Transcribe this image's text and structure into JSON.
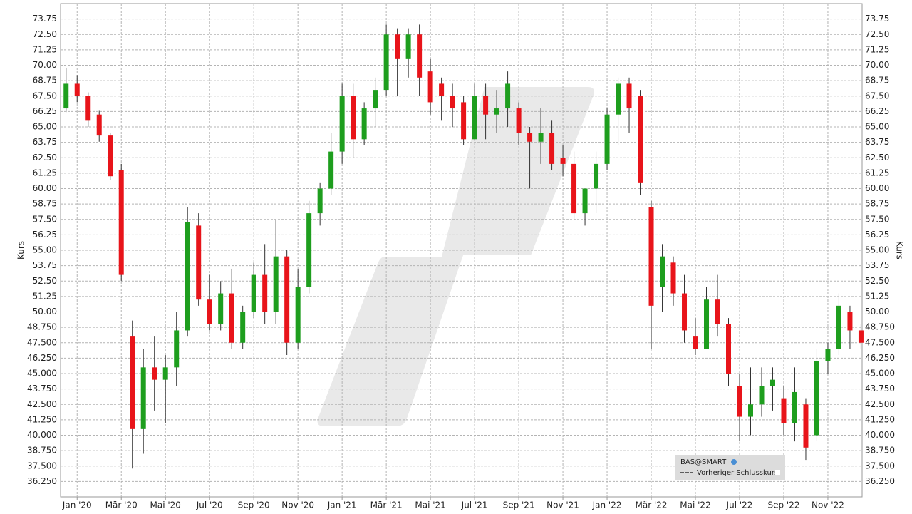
{
  "chart_data": {
    "type": "candlestick",
    "y_label": "Kurs",
    "xlim": [
      -0.75,
      35.55
    ],
    "ylim": [
      35,
      75
    ],
    "grid": true,
    "up_color": "#1e9e1e",
    "down_color": "#e8141a",
    "legend": {
      "title": "BAS@SMART",
      "items": [
        "Vorheriger Schlusskurs"
      ],
      "position": "lower-right"
    },
    "xticks": [
      {
        "value": 0,
        "label": "Jan '20"
      },
      {
        "value": 2,
        "label": "Mär '20"
      },
      {
        "value": 4,
        "label": "Mai '20"
      },
      {
        "value": 6,
        "label": "Jul '20"
      },
      {
        "value": 8,
        "label": "Sep '20"
      },
      {
        "value": 10,
        "label": "Nov '20"
      },
      {
        "value": 12,
        "label": "Jan '21"
      },
      {
        "value": 14,
        "label": "Mär '21"
      },
      {
        "value": 16,
        "label": "Mai '21"
      },
      {
        "value": 18,
        "label": "Jul '21"
      },
      {
        "value": 20,
        "label": "Sep '21"
      },
      {
        "value": 22,
        "label": "Nov '21"
      },
      {
        "value": 24,
        "label": "Jan '22"
      },
      {
        "value": 26,
        "label": "Mär '22"
      },
      {
        "value": 28,
        "label": "Mai '22"
      },
      {
        "value": 30,
        "label": "Jul '22"
      },
      {
        "value": 32,
        "label": "Sep '22"
      },
      {
        "value": 34,
        "label": "Nov '22"
      }
    ],
    "yticks": [
      {
        "value": 36.25,
        "label": "36.250"
      },
      {
        "value": 37.5,
        "label": "37.500"
      },
      {
        "value": 38.75,
        "label": "38.750"
      },
      {
        "value": 40,
        "label": "40.000"
      },
      {
        "value": 41.25,
        "label": "41.250"
      },
      {
        "value": 42.5,
        "label": "42.500"
      },
      {
        "value": 43.75,
        "label": "43.750"
      },
      {
        "value": 45,
        "label": "45.000"
      },
      {
        "value": 46.25,
        "label": "46.250"
      },
      {
        "value": 47.5,
        "label": "47.500"
      },
      {
        "value": 48.75,
        "label": "48.750"
      },
      {
        "value": 50,
        "label": "50.00"
      },
      {
        "value": 51.25,
        "label": "51.25"
      },
      {
        "value": 52.5,
        "label": "52.50"
      },
      {
        "value": 53.75,
        "label": "53.75"
      },
      {
        "value": 55,
        "label": "55.00"
      },
      {
        "value": 56.25,
        "label": "56.25"
      },
      {
        "value": 57.5,
        "label": "57.50"
      },
      {
        "value": 58.75,
        "label": "58.75"
      },
      {
        "value": 60,
        "label": "60.00"
      },
      {
        "value": 61.25,
        "label": "61.25"
      },
      {
        "value": 62.5,
        "label": "62.50"
      },
      {
        "value": 63.75,
        "label": "63.75"
      },
      {
        "value": 65,
        "label": "65.00"
      },
      {
        "value": 66.25,
        "label": "66.25"
      },
      {
        "value": 67.5,
        "label": "67.50"
      },
      {
        "value": 68.75,
        "label": "68.75"
      },
      {
        "value": 70,
        "label": "70.00"
      },
      {
        "value": 71.25,
        "label": "71.25"
      },
      {
        "value": 72.5,
        "label": "72.50"
      },
      {
        "value": 73.75,
        "label": "73.75"
      }
    ],
    "x": [
      -0.5,
      0,
      0.5,
      1,
      1.5,
      2,
      2.5,
      3,
      3.5,
      4,
      4.5,
      5,
      5.5,
      6,
      6.5,
      7,
      7.5,
      8,
      8.5,
      9,
      9.5,
      10,
      10.5,
      11,
      11.5,
      12,
      12.5,
      13,
      13.5,
      14,
      14.5,
      15,
      15.5,
      16,
      16.5,
      17,
      17.5,
      18,
      18.5,
      19,
      19.5,
      20,
      20.5,
      21,
      21.5,
      22,
      22.5,
      23,
      23.5,
      24,
      24.5,
      25,
      25.5,
      26,
      26.5,
      27,
      27.5,
      28,
      28.5,
      29,
      29.5,
      30,
      30.5,
      31,
      31.5,
      32,
      32.5,
      33,
      33.5,
      34,
      34.5,
      35,
      35.5
    ],
    "open": [
      66.5,
      68.5,
      67.5,
      66,
      64.3,
      61.5,
      48,
      40.5,
      45.5,
      44.5,
      45.5,
      48.5,
      57,
      51,
      49,
      51.5,
      47.5,
      50,
      53,
      50,
      54.5,
      47.5,
      52,
      58,
      60,
      63,
      67.5,
      64,
      66.5,
      68,
      72.5,
      70.5,
      72.5,
      69.5,
      68.5,
      67.5,
      67,
      64,
      67.5,
      66,
      66.5,
      66.5,
      64.5,
      63.8,
      64.5,
      62.5,
      62,
      58,
      60,
      62,
      66,
      68.5,
      67.5,
      58.5,
      52,
      54,
      51.5,
      48,
      47,
      51,
      49,
      44,
      41.5,
      42.5,
      44,
      43,
      41,
      42.5,
      40,
      46,
      47,
      50,
      48.5
    ],
    "high": [
      69.8,
      69.2,
      67.8,
      66.3,
      64.5,
      62,
      49.3,
      47,
      48,
      46.5,
      50,
      58.5,
      58,
      53,
      52.5,
      53.5,
      50.5,
      54,
      55.5,
      57.5,
      55,
      53.5,
      59,
      60.5,
      64.5,
      68.5,
      68.5,
      67,
      69,
      73.3,
      73,
      73,
      73.3,
      70.5,
      69,
      68.5,
      67.5,
      68.5,
      68.5,
      68,
      69.5,
      67,
      65,
      66.5,
      65.5,
      63.5,
      63,
      60,
      63,
      66.5,
      69,
      69,
      68,
      59,
      55.5,
      54.5,
      53,
      49.5,
      52,
      53,
      49.5,
      45,
      45.5,
      45.5,
      45.5,
      44,
      45.5,
      43,
      47,
      47.5,
      51.5,
      50.5,
      49
    ],
    "low": [
      66.2,
      67,
      65,
      63.8,
      60.7,
      52.5,
      37.3,
      38.5,
      42,
      41,
      44,
      48,
      50.5,
      48.5,
      48.5,
      47,
      47,
      49.5,
      49,
      49,
      46.5,
      47,
      51.5,
      57,
      59.5,
      62,
      62.5,
      63.5,
      65,
      67.5,
      67.5,
      69,
      67.5,
      66,
      65.5,
      65,
      63.5,
      64,
      64,
      64.5,
      65,
      63.5,
      60,
      62,
      61.5,
      61,
      57.5,
      57,
      58,
      61.5,
      63.5,
      64.5,
      59.5,
      47,
      50,
      50.5,
      47.5,
      46.5,
      47,
      48,
      44,
      39.5,
      40,
      41.5,
      42,
      40,
      39.5,
      38,
      39.5,
      45,
      46.5,
      47,
      47
    ],
    "close": [
      68.5,
      67.5,
      65.5,
      64.3,
      61,
      53,
      40.5,
      45.5,
      44.5,
      45.5,
      48.5,
      57.3,
      51,
      49,
      51.5,
      47.5,
      50,
      53,
      50,
      54.5,
      47.5,
      52,
      58,
      60,
      63,
      67.5,
      64,
      66.5,
      68,
      72.5,
      70.5,
      72.5,
      69,
      67,
      67.5,
      66.5,
      64,
      67.5,
      66,
      66.5,
      68.5,
      64.5,
      63.8,
      64.5,
      62,
      62,
      58,
      60,
      62,
      66,
      68.5,
      66.5,
      60.5,
      50.5,
      54.5,
      51.5,
      48.5,
      47,
      51,
      49,
      45,
      41.5,
      42.5,
      44,
      44.5,
      41,
      43.5,
      39,
      46,
      47,
      50.5,
      48.5,
      47.5
    ]
  }
}
